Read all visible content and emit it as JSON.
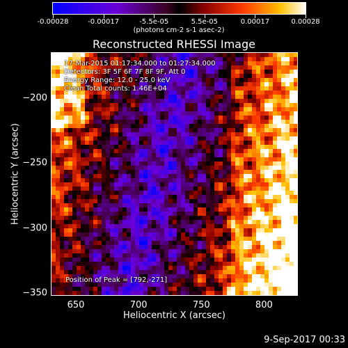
{
  "chart_data": {
    "type": "heatmap",
    "title": "Reconstructed RHESSI Image",
    "xlabel": "Heliocentric X (arcsec)",
    "ylabel": "Heliocentric Y (arcsec)",
    "xlim": [
      630,
      827
    ],
    "ylim": [
      -352,
      -165
    ],
    "xticks": [
      "650",
      "700",
      "750",
      "800"
    ],
    "yticks": [
      "-200",
      "-250",
      "-300",
      "-350"
    ],
    "colorbar": {
      "min": -0.00028,
      "max": 0.00028,
      "ticks": [
        "-0.00028",
        "-0.00017",
        "-5.5e-05",
        "5.5e-05",
        "0.00017",
        "0.00028"
      ],
      "units": "(photons cm-2 s-1 asec-2)"
    },
    "annotations": {
      "time_range": "17-Mar-2015 01:17:34.000 to 01:27:34.000",
      "detectors": "Detectors: 3F 5F 6F 7F 8F 9F, Att 0",
      "energy": "Energy Range: 12.0 - 25.0 keV",
      "clean": "Clean   Total counts: 1.46E+04",
      "peak": "Position of Peak = [792,-271]"
    },
    "peak_position": [
      792,
      -271
    ]
  },
  "footer_date": "9-Sep-2017 00:33",
  "colors": {
    "background": "#000000",
    "foreground": "#ffffff"
  }
}
